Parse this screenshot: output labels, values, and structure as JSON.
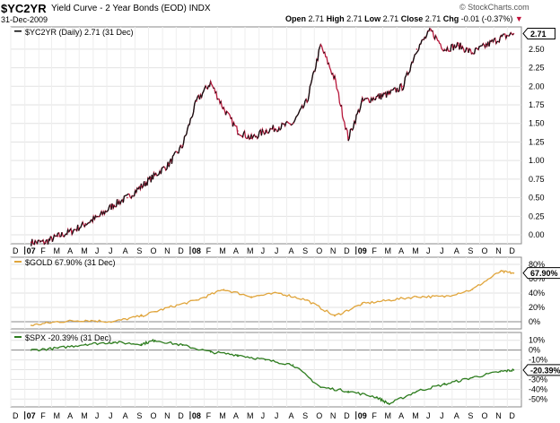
{
  "header": {
    "symbol": "$YC2YR",
    "name": "Yield Curve - 2 Year Bonds (EOD)",
    "exchange": "INDX",
    "date": "31-Dec-2009",
    "open_label": "Open",
    "open": "2.71",
    "high_label": "High",
    "high": "2.71",
    "low_label": "Low",
    "low": "2.71",
    "close_label": "Close",
    "close": "2.71",
    "chg_label": "Chg",
    "chg": "-0.01 (-0.37%)",
    "watermark": "© StockCharts.com"
  },
  "chart_data": [
    {
      "type": "line",
      "legend": "$YC2YR (Daily) 2.71 (31 Dec)",
      "series": [
        {
          "name": "$YC2YR",
          "color": "#b8183c"
        }
      ],
      "x": [
        "2007-01",
        "2007-02",
        "2007-03",
        "2007-04",
        "2007-05",
        "2007-06",
        "2007-07",
        "2007-08",
        "2007-09",
        "2007-10",
        "2007-11",
        "2007-12",
        "2008-01",
        "2008-02",
        "2008-03",
        "2008-04",
        "2008-05",
        "2008-06",
        "2008-07",
        "2008-08",
        "2008-09",
        "2008-10",
        "2008-11",
        "2008-12",
        "2009-01",
        "2009-02",
        "2009-03",
        "2009-04",
        "2009-05",
        "2009-06",
        "2009-07",
        "2009-08",
        "2009-09",
        "2009-10",
        "2009-11",
        "2009-12"
      ],
      "values": [
        -0.1,
        -0.1,
        -0.02,
        0.05,
        0.15,
        0.25,
        0.4,
        0.5,
        0.65,
        0.8,
        0.95,
        1.2,
        1.8,
        2.05,
        1.7,
        1.4,
        1.3,
        1.4,
        1.45,
        1.5,
        1.8,
        2.55,
        2.1,
        1.3,
        1.8,
        1.85,
        1.9,
        2.0,
        2.5,
        2.75,
        2.5,
        2.55,
        2.45,
        2.55,
        2.65,
        2.71
      ],
      "ylim": [
        -0.12,
        2.8
      ],
      "yticks": [
        "0.00",
        "0.25",
        "0.50",
        "0.75",
        "1.00",
        "1.25",
        "1.50",
        "1.75",
        "2.00",
        "2.25",
        "2.50"
      ],
      "last_label": "2.71",
      "xticklabels": [
        "D",
        "07",
        "F",
        "M",
        "A",
        "M",
        "J",
        "J",
        "A",
        "S",
        "O",
        "N",
        "D",
        "08",
        "F",
        "M",
        "A",
        "M",
        "J",
        "J",
        "A",
        "S",
        "O",
        "N",
        "D",
        "09",
        "F",
        "M",
        "A",
        "M",
        "J",
        "J",
        "A",
        "S",
        "O",
        "N",
        "D"
      ]
    },
    {
      "type": "line",
      "legend": "$GOLD 67.90% (31 Dec)",
      "series": [
        {
          "name": "$GOLD",
          "color": "#e0a53c"
        }
      ],
      "x": [
        "2007-01",
        "2007-03",
        "2007-05",
        "2007-07",
        "2007-09",
        "2007-11",
        "2008-01",
        "2008-03",
        "2008-05",
        "2008-07",
        "2008-09",
        "2008-11",
        "2009-01",
        "2009-03",
        "2009-05",
        "2009-07",
        "2009-09",
        "2009-11",
        "2009-12"
      ],
      "values": [
        -5,
        0,
        2,
        0,
        8,
        20,
        30,
        45,
        35,
        40,
        30,
        8,
        25,
        30,
        35,
        35,
        45,
        70,
        67.9
      ],
      "ylim": [
        -10,
        90
      ],
      "yticks": [
        "0%",
        "20%",
        "40%",
        "60%",
        "80%"
      ],
      "last_label": "67.90%"
    },
    {
      "type": "line",
      "legend": "$SPX -20.39% (31 Dec)",
      "series": [
        {
          "name": "$SPX",
          "color": "#2e7d1f"
        }
      ],
      "x": [
        "2007-01",
        "2007-03",
        "2007-05",
        "2007-07",
        "2007-09",
        "2007-10",
        "2007-12",
        "2008-02",
        "2008-04",
        "2008-06",
        "2008-08",
        "2008-10",
        "2008-12",
        "2009-02",
        "2009-03",
        "2009-05",
        "2009-07",
        "2009-09",
        "2009-11",
        "2009-12"
      ],
      "values": [
        0,
        2,
        6,
        8,
        6,
        10,
        5,
        -2,
        -5,
        -10,
        -15,
        -38,
        -42,
        -48,
        -55,
        -42,
        -35,
        -28,
        -22,
        -20.39
      ],
      "ylim": [
        -58,
        18
      ],
      "yticks": [
        "10%",
        "0%",
        "-10%",
        "-20%",
        "-30%",
        "-40%",
        "-50%"
      ],
      "last_label": "-20.39%",
      "xticklabels": [
        "D",
        "07",
        "F",
        "M",
        "A",
        "M",
        "J",
        "J",
        "A",
        "S",
        "O",
        "N",
        "D",
        "08",
        "F",
        "M",
        "A",
        "M",
        "J",
        "J",
        "A",
        "S",
        "O",
        "N",
        "D",
        "09",
        "F",
        "M",
        "A",
        "M",
        "J",
        "J",
        "A",
        "S",
        "O",
        "N",
        "D"
      ]
    }
  ]
}
